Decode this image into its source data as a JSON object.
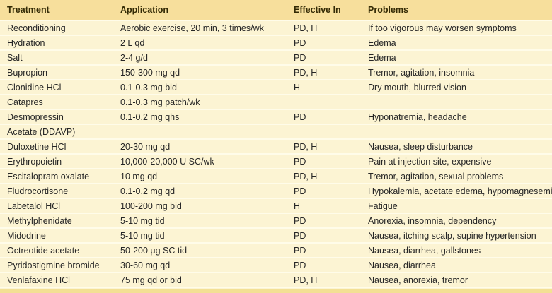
{
  "colors": {
    "header_bg": "#f7df9c",
    "row_bg": "#fcf4d3",
    "separator": "#fffce9",
    "bottom_strip": "#f3e094",
    "header_text": "#332a05",
    "body_text": "#262626"
  },
  "table": {
    "columns": [
      "Treatment",
      "Application",
      "Effective In",
      "Problems"
    ],
    "rows": [
      {
        "treatment": "Reconditioning",
        "application": "Aerobic exercise, 20 min, 3 times/wk",
        "effective_in": "PD, H",
        "problems": "If too vigorous may worsen symptoms"
      },
      {
        "treatment": "Hydration",
        "application": "2 L qd",
        "effective_in": "PD",
        "problems": "Edema"
      },
      {
        "treatment": "Salt",
        "application": "2-4 g/d",
        "effective_in": "PD",
        "problems": "Edema"
      },
      {
        "treatment": "Bupropion",
        "application": "150-300 mg qd",
        "effective_in": "PD, H",
        "problems": "Tremor, agitation, insomnia"
      },
      {
        "treatment": "Clonidine HCl",
        "application": "0.1-0.3 mg bid",
        "effective_in": "H",
        "problems": "Dry mouth, blurred vision"
      },
      {
        "treatment": "Catapres",
        "application": "0.1-0.3 mg patch/wk",
        "effective_in": "",
        "problems": ""
      },
      {
        "treatment": "Desmopressin",
        "application": "0.1-0.2 mg qhs",
        "effective_in": "PD",
        "problems": "Hyponatremia, headache"
      },
      {
        "treatment": "Acetate (DDAVP)",
        "application": "",
        "effective_in": "",
        "problems": ""
      },
      {
        "treatment": "Duloxetine HCl",
        "application": "20-30 mg qd",
        "effective_in": "PD, H",
        "problems": "Nausea, sleep disturbance"
      },
      {
        "treatment": "Erythropoietin",
        "application": "10,000-20,000 U SC/wk",
        "effective_in": "PD",
        "problems": "Pain at injection site, expensive"
      },
      {
        "treatment": "Escitalopram oxalate",
        "application": "10 mg qd",
        "effective_in": "PD, H",
        "problems": "Tremor, agitation, sexual problems"
      },
      {
        "treatment": "Fludrocortisone",
        "application": "0.1-0.2 mg qd",
        "effective_in": "PD",
        "problems": "Hypokalemia, acetate edema, hypomagnesemia"
      },
      {
        "treatment": "Labetalol HCl",
        "application": "100-200 mg bid",
        "effective_in": "H",
        "problems": "Fatigue"
      },
      {
        "treatment": "Methylphenidate",
        "application": "5-10 mg tid",
        "effective_in": "PD",
        "problems": "Anorexia, insomnia, dependency"
      },
      {
        "treatment": "Midodrine",
        "application": "5-10 mg tid",
        "effective_in": "PD",
        "problems": "Nausea, itching scalp, supine hypertension"
      },
      {
        "treatment": "Octreotide acetate",
        "application": "50-200 μg SC tid",
        "effective_in": "PD",
        "problems": "Nausea, diarrhea, gallstones"
      },
      {
        "treatment": "Pyridostigmine bromide",
        "application": "30-60 mg qd",
        "effective_in": "PD",
        "problems": "Nausea, diarrhea"
      },
      {
        "treatment": "Venlafaxine HCl",
        "application": "75 mg qd or bid",
        "effective_in": "PD, H",
        "problems": "Nausea, anorexia, tremor"
      }
    ]
  }
}
